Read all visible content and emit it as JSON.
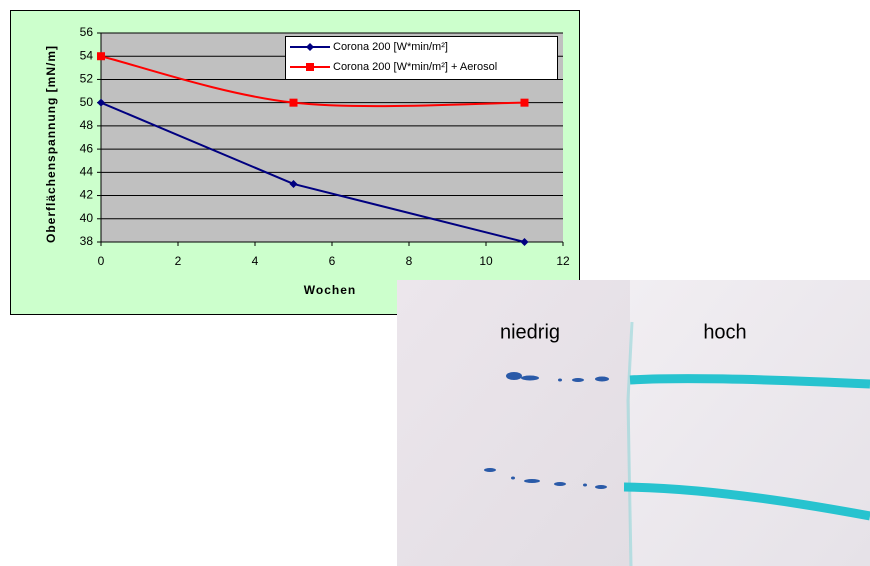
{
  "chart_data": {
    "type": "line",
    "x_label": "Wochen",
    "y_label": "Oberflächenspannung [mN/m]",
    "x": [
      0,
      5,
      11
    ],
    "series": [
      {
        "name": "Corona 200 [W*min/m²]",
        "color": "#000080",
        "marker": "diamond",
        "smooth": false,
        "values": [
          50,
          43,
          38
        ]
      },
      {
        "name": "Corona 200 [W*min/m²] + Aerosol",
        "color": "#ff0000",
        "marker": "square",
        "smooth": true,
        "values": [
          54,
          50,
          50
        ]
      }
    ],
    "xlim": [
      0,
      12
    ],
    "xticks": [
      0,
      2,
      4,
      6,
      8,
      10,
      12
    ],
    "ylim": [
      38,
      56
    ],
    "yticks": [
      38,
      40,
      42,
      44,
      46,
      48,
      50,
      52,
      54,
      56
    ],
    "grid": true,
    "legend": "top-right"
  },
  "photo": {
    "labels": [
      "niedrig",
      "hoch"
    ]
  }
}
